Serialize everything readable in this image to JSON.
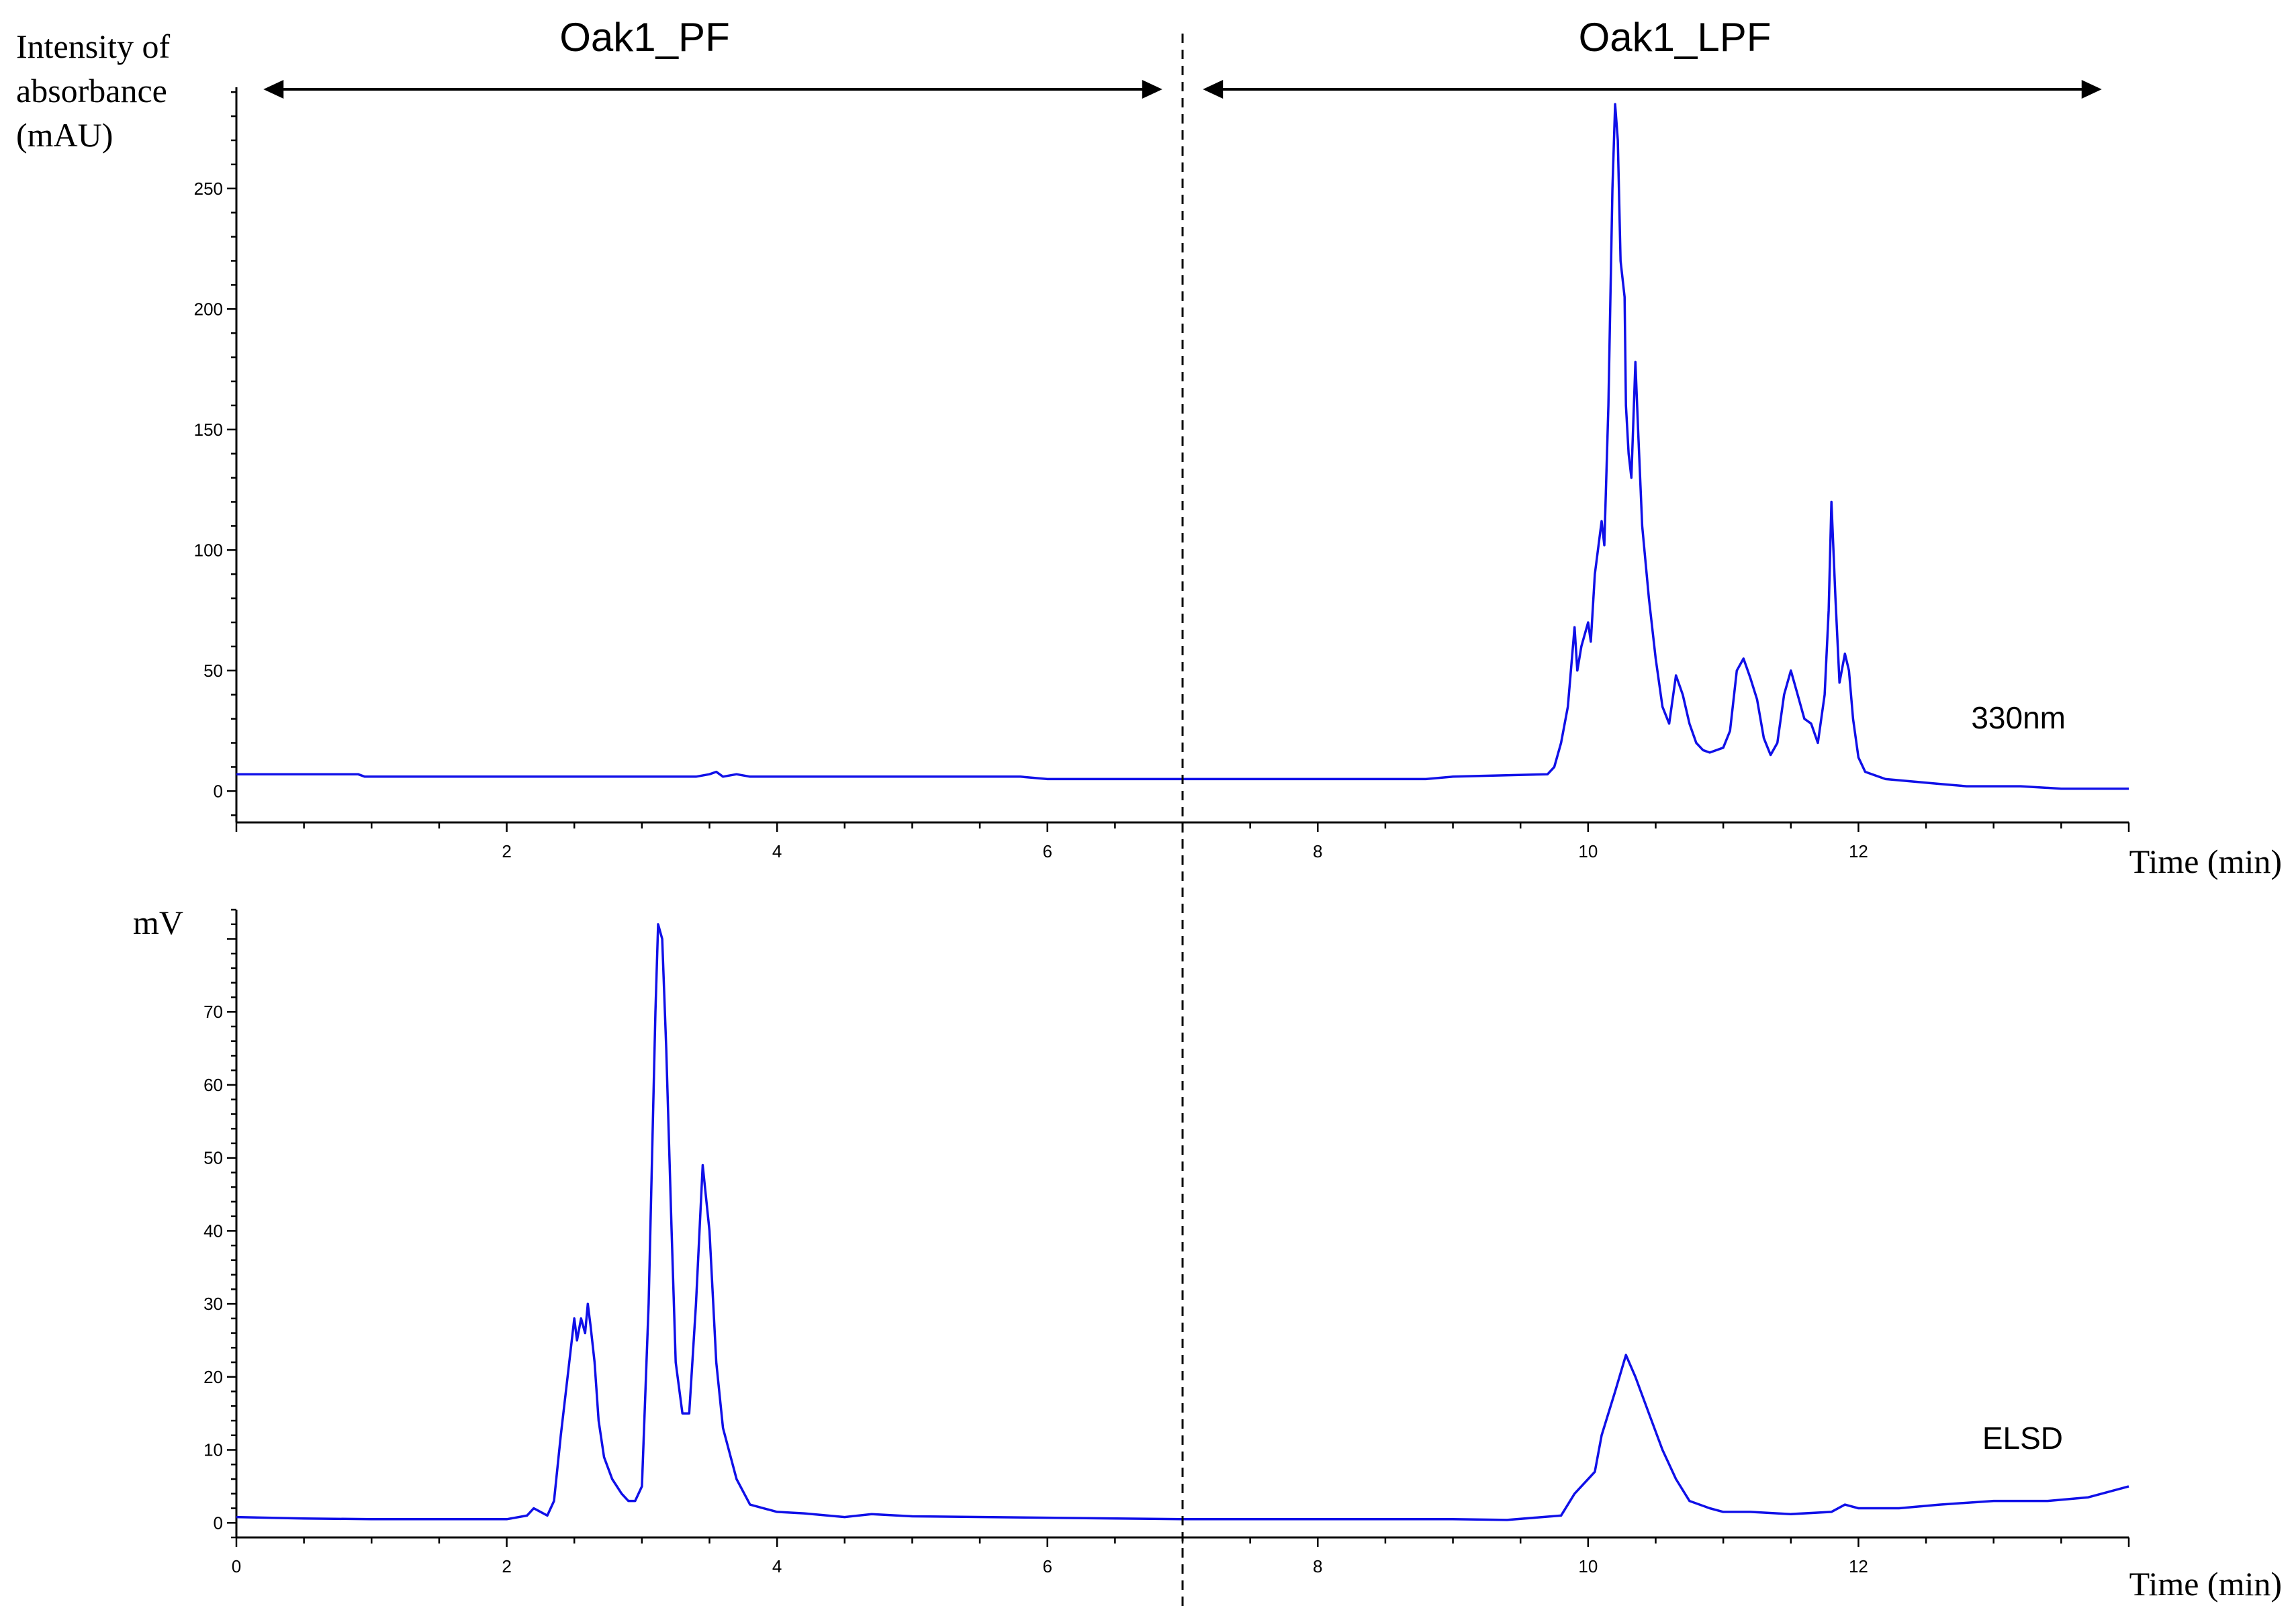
{
  "colors": {
    "trace": "#1010e8",
    "axis": "#000000",
    "background": "#ffffff"
  },
  "regions": [
    {
      "label": "Oak1_PF",
      "x_start": 0.2,
      "x_end": 6.85
    },
    {
      "label": "Oak1_LPF",
      "x_start": 7.15,
      "x_end": 13.8
    }
  ],
  "divider_x": 7.0,
  "chart_data": [
    {
      "type": "line",
      "ylabel_lines": [
        "Intensity of",
        "absorbance",
        "(mAU)"
      ],
      "xlabel": "Time (min)",
      "trace_label": "330nm",
      "xlim": [
        0,
        14
      ],
      "ylim": [
        -13,
        292
      ],
      "x_ticks": [
        2,
        4,
        6,
        8,
        10,
        12
      ],
      "x_tick_labels": [
        "2",
        "4",
        "6",
        "8",
        "10",
        "12"
      ],
      "y_ticks": [
        0,
        50,
        100,
        150,
        200,
        250
      ],
      "y_tick_labels": [
        "0",
        "50",
        "100",
        "150",
        "200",
        "250"
      ],
      "grid": false,
      "series": [
        {
          "x": [
            0,
            0.9,
            0.95,
            3.4,
            3.5,
            3.55,
            3.6,
            3.7,
            3.8,
            4.0,
            5.0,
            5.8,
            6.0,
            7.0,
            8.0,
            8.8,
            9.0,
            9.7,
            9.75,
            9.8,
            9.85,
            9.9,
            9.92,
            9.95,
            10.0,
            10.02,
            10.05,
            10.1,
            10.12,
            10.15,
            10.18,
            10.2,
            10.22,
            10.24,
            10.27,
            10.28,
            10.3,
            10.32,
            10.35,
            10.37,
            10.4,
            10.45,
            10.5,
            10.55,
            10.6,
            10.65,
            10.7,
            10.75,
            10.8,
            10.85,
            10.9,
            11.0,
            11.05,
            11.1,
            11.15,
            11.2,
            11.25,
            11.3,
            11.35,
            11.4,
            11.45,
            11.5,
            11.55,
            11.6,
            11.65,
            11.7,
            11.75,
            11.78,
            11.8,
            11.83,
            11.86,
            11.9,
            11.93,
            11.96,
            12.0,
            12.05,
            12.2,
            12.4,
            12.6,
            12.8,
            13.0,
            13.2,
            13.5,
            14.0
          ],
          "y": [
            7,
            7,
            6,
            6,
            7,
            8,
            6,
            7,
            6,
            6,
            6,
            6,
            5,
            5,
            5,
            5,
            6,
            7,
            10,
            20,
            35,
            68,
            50,
            60,
            70,
            62,
            90,
            112,
            102,
            160,
            250,
            285,
            270,
            220,
            205,
            160,
            140,
            130,
            178,
            150,
            110,
            80,
            55,
            35,
            28,
            48,
            40,
            28,
            20,
            17,
            16,
            18,
            25,
            50,
            55,
            47,
            38,
            22,
            15,
            20,
            40,
            50,
            40,
            30,
            28,
            20,
            40,
            75,
            120,
            80,
            45,
            57,
            50,
            30,
            14,
            8,
            5,
            4,
            3,
            2,
            2,
            2,
            1,
            1
          ]
        }
      ]
    },
    {
      "type": "line",
      "ylabel_lines": [
        "mV"
      ],
      "xlabel": "Time (min)",
      "trace_label": "ELSD",
      "xlim": [
        0,
        14
      ],
      "ylim": [
        -2,
        84
      ],
      "x_ticks": [
        0,
        2,
        4,
        6,
        8,
        10,
        12
      ],
      "x_tick_labels": [
        "0",
        "2",
        "4",
        "6",
        "8",
        "10",
        "12"
      ],
      "y_ticks": [
        0,
        10,
        20,
        30,
        40,
        50,
        60,
        70
      ],
      "y_tick_labels": [
        "0",
        "10",
        "20",
        "30",
        "40",
        "50",
        "60",
        "70"
      ],
      "grid": false,
      "series": [
        {
          "x": [
            0,
            0.5,
            1.0,
            2.0,
            2.15,
            2.2,
            2.25,
            2.3,
            2.35,
            2.4,
            2.45,
            2.5,
            2.52,
            2.55,
            2.58,
            2.6,
            2.62,
            2.65,
            2.68,
            2.72,
            2.78,
            2.85,
            2.9,
            2.95,
            3.0,
            3.05,
            3.1,
            3.12,
            3.15,
            3.18,
            3.22,
            3.25,
            3.3,
            3.35,
            3.4,
            3.45,
            3.5,
            3.55,
            3.6,
            3.7,
            3.8,
            4.0,
            4.2,
            4.5,
            4.7,
            5.0,
            6.0,
            7.0,
            8.0,
            9.0,
            9.4,
            9.8,
            9.9,
            10.0,
            10.05,
            10.1,
            10.2,
            10.28,
            10.35,
            10.45,
            10.55,
            10.65,
            10.75,
            10.9,
            11.0,
            11.2,
            11.5,
            11.8,
            11.9,
            12.0,
            12.3,
            12.6,
            13.0,
            13.4,
            13.7,
            14.0
          ],
          "y": [
            0.8,
            0.6,
            0.5,
            0.5,
            1.0,
            2.0,
            1.5,
            1.0,
            3.0,
            12.0,
            20.0,
            28.0,
            25.0,
            28.0,
            26.0,
            30.0,
            27.0,
            22.0,
            14.0,
            9.0,
            6.0,
            4.0,
            3.0,
            3.0,
            5.0,
            30.0,
            70.0,
            82.0,
            80.0,
            65.0,
            40.0,
            22.0,
            15.0,
            15.0,
            30.0,
            49.0,
            40.0,
            22.0,
            13.0,
            6.0,
            2.5,
            1.5,
            1.3,
            0.8,
            1.2,
            0.9,
            0.7,
            0.5,
            0.5,
            0.5,
            0.4,
            1.0,
            4.0,
            6.0,
            7.0,
            12.0,
            18.0,
            23.0,
            20.0,
            15.0,
            10.0,
            6.0,
            3.0,
            2.0,
            1.5,
            1.5,
            1.2,
            1.5,
            2.5,
            2.0,
            2.0,
            2.5,
            3.0,
            3.0,
            3.5,
            5.0
          ]
        }
      ]
    }
  ]
}
